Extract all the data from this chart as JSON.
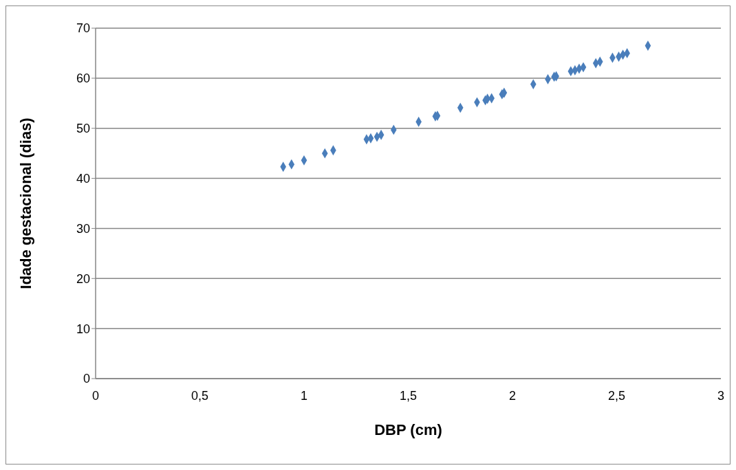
{
  "chart_data": {
    "type": "scatter",
    "xlabel": "DBP (cm)",
    "ylabel": "Idade gestacional (dias)",
    "x": [
      0.9,
      0.94,
      1.0,
      1.1,
      1.14,
      1.3,
      1.32,
      1.35,
      1.37,
      1.43,
      1.55,
      1.63,
      1.64,
      1.75,
      1.83,
      1.87,
      1.88,
      1.9,
      1.95,
      1.96,
      2.1,
      2.17,
      2.2,
      2.21,
      2.28,
      2.3,
      2.32,
      2.34,
      2.4,
      2.42,
      2.48,
      2.51,
      2.53,
      2.55,
      2.65
    ],
    "values": [
      42.3,
      42.8,
      43.6,
      45.0,
      45.6,
      47.8,
      48.0,
      48.3,
      48.7,
      49.7,
      51.3,
      52.4,
      52.5,
      54.1,
      55.2,
      55.6,
      55.9,
      56.0,
      56.8,
      57.1,
      58.8,
      59.8,
      60.3,
      60.4,
      61.4,
      61.6,
      61.9,
      62.2,
      63.0,
      63.3,
      64.1,
      64.3,
      64.7,
      65.0,
      66.5
    ],
    "color": "#4a7ebb",
    "marker": "diamond",
    "xlim": [
      0,
      3
    ],
    "xticks": [
      0,
      {
        "value": 0.5,
        "label": "0,5"
      },
      1,
      {
        "value": 1.5,
        "label": "1,5"
      },
      2,
      {
        "value": 2.5,
        "label": "2,5"
      },
      3
    ],
    "ylim": [
      0,
      70
    ],
    "yticks": [
      0,
      10,
      20,
      30,
      40,
      50,
      60,
      70
    ],
    "grid": "y",
    "legend": false
  }
}
